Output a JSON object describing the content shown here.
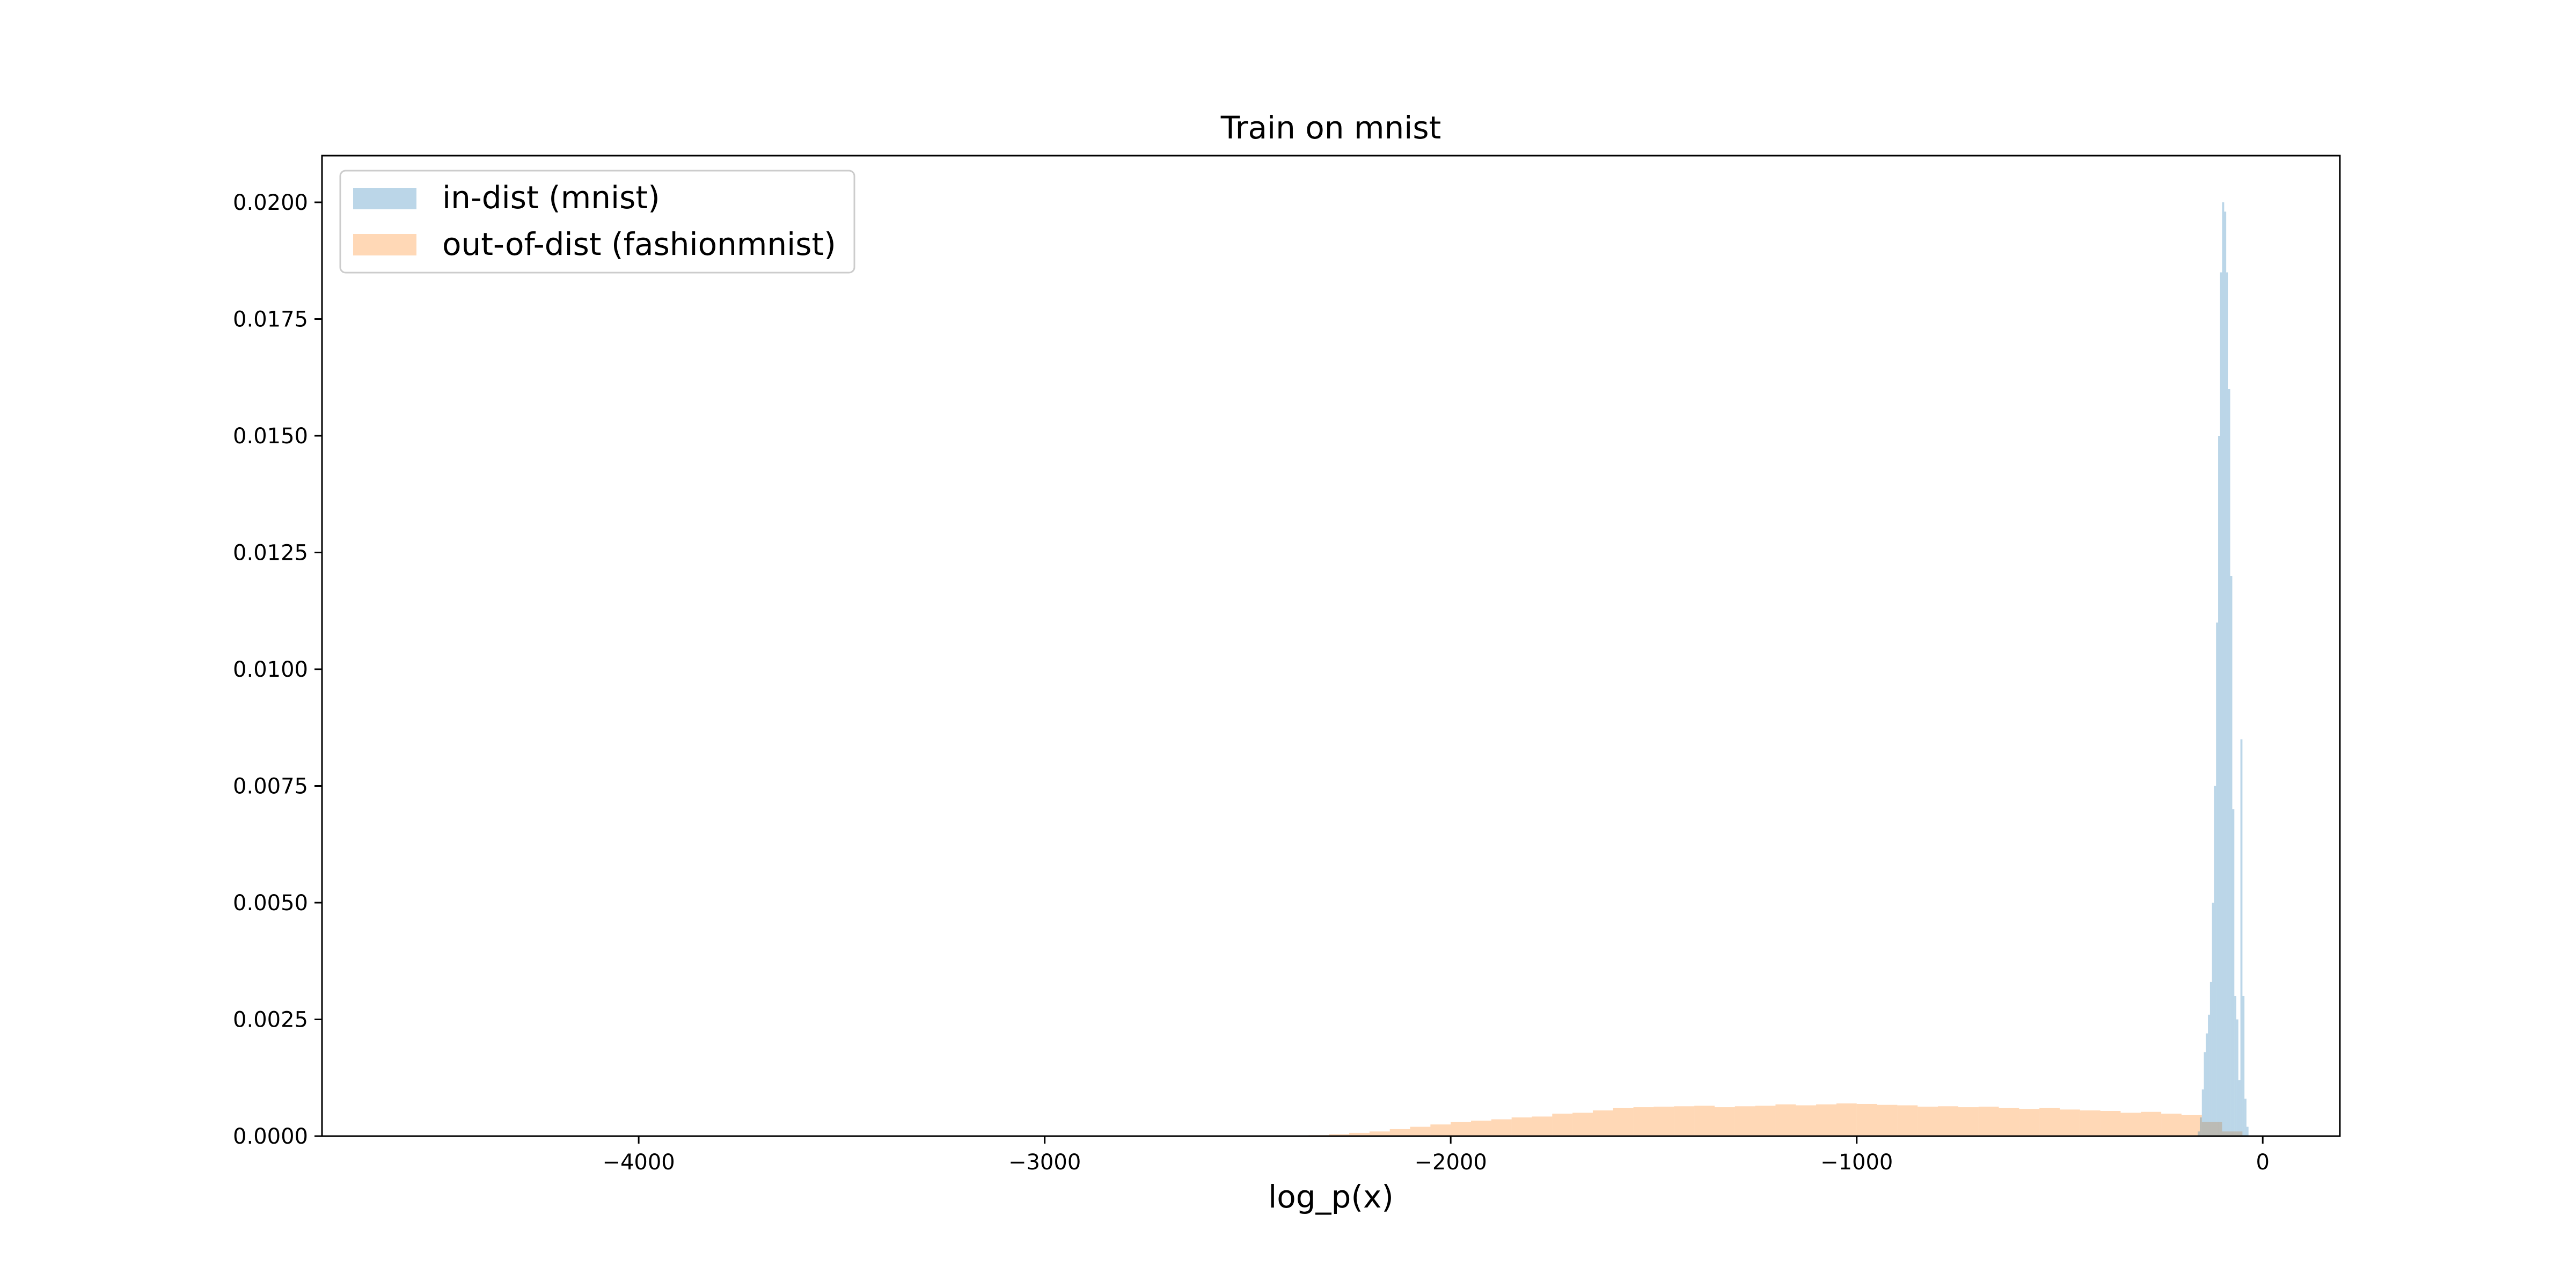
{
  "chart_data": {
    "type": "bar",
    "title": "Train on mnist",
    "xlabel": "log_p(x)",
    "ylabel": "",
    "xlim": [
      -4780,
      190
    ],
    "ylim": [
      0,
      0.021
    ],
    "xticks": [
      -4000,
      -3000,
      -2000,
      -1000,
      0
    ],
    "xtick_labels": [
      "−4000",
      "−3000",
      "−2000",
      "−1000",
      "0"
    ],
    "yticks": [
      0,
      0.0025,
      0.005,
      0.0075,
      0.01,
      0.0125,
      0.015,
      0.0175,
      0.02
    ],
    "ytick_labels": [
      "0.0000",
      "0.0025",
      "0.0050",
      "0.0075",
      "0.0100",
      "0.0125",
      "0.0150",
      "0.0175",
      "0.0200"
    ],
    "grid": false,
    "legend_position": "top-left",
    "series": [
      {
        "name": "in-dist (mnist)",
        "color": "#1f77b4",
        "opacity": 0.3,
        "x": [
          -160,
          -155,
          -150,
          -145,
          -140,
          -135,
          -130,
          -125,
          -120,
          -115,
          -110,
          -105,
          -100,
          -95,
          -90,
          -85,
          -80,
          -75,
          -70,
          -65,
          -60,
          -55,
          -50,
          -45,
          -40
        ],
        "values": [
          0.0001,
          0.0004,
          0.001,
          0.0018,
          0.0022,
          0.0026,
          0.0033,
          0.005,
          0.0075,
          0.011,
          0.015,
          0.0185,
          0.02,
          0.0198,
          0.0185,
          0.016,
          0.012,
          0.007,
          0.003,
          0.0025,
          0.0012,
          0.0085,
          0.003,
          0.0008,
          0.0002
        ]
      },
      {
        "name": "out-of-dist (fashionmnist)",
        "color": "#ff7f0e",
        "opacity": 0.3,
        "x": [
          -2350,
          -2300,
          -2250,
          -2200,
          -2150,
          -2100,
          -2050,
          -2000,
          -1950,
          -1900,
          -1850,
          -1800,
          -1750,
          -1700,
          -1650,
          -1600,
          -1550,
          -1500,
          -1450,
          -1400,
          -1350,
          -1300,
          -1250,
          -1200,
          -1150,
          -1100,
          -1050,
          -1000,
          -950,
          -900,
          -850,
          -800,
          -750,
          -700,
          -650,
          -600,
          -550,
          -500,
          -450,
          -400,
          -350,
          -300,
          -250,
          -200,
          -150,
          -100
        ],
        "values": [
          2e-05,
          4e-05,
          7e-05,
          0.0001,
          0.00015,
          0.0002,
          0.00025,
          0.0003,
          0.00033,
          0.00036,
          0.0004,
          0.00042,
          0.00048,
          0.0005,
          0.00055,
          0.0006,
          0.00062,
          0.00063,
          0.00064,
          0.00065,
          0.00062,
          0.00064,
          0.00065,
          0.00068,
          0.00066,
          0.00068,
          0.0007,
          0.00069,
          0.00067,
          0.00066,
          0.00063,
          0.00064,
          0.00062,
          0.00063,
          0.0006,
          0.00058,
          0.0006,
          0.00057,
          0.00055,
          0.00054,
          0.0005,
          0.00052,
          0.00048,
          0.00045,
          0.0003,
          0.0001
        ]
      }
    ]
  }
}
